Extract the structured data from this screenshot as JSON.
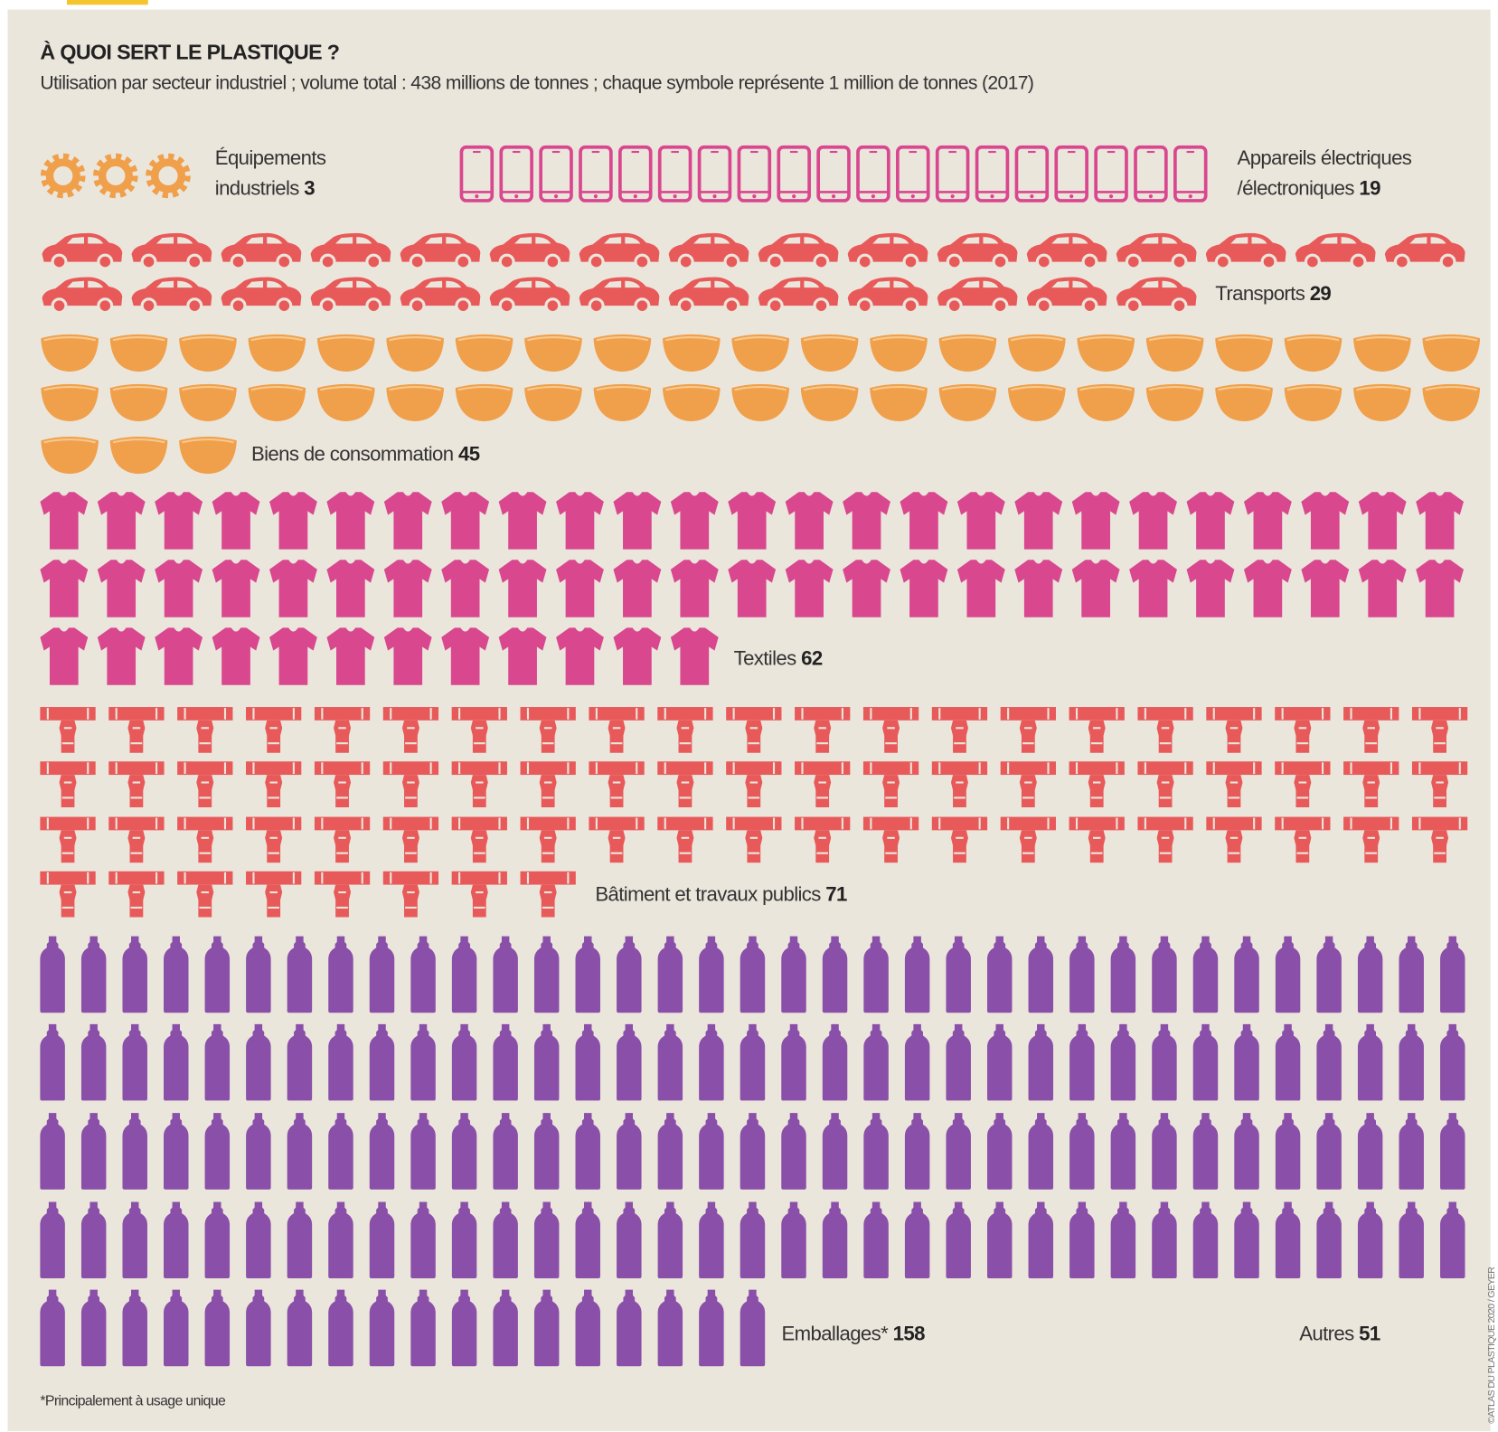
{
  "chart_data": {
    "type": "pictogram",
    "title": "À QUOI SERT LE PLASTIQUE ?",
    "subtitle": "Utilisation par secteur industriel ; volume total : 438 millions de tonnes ; chaque symbole représente 1 million de tonnes (2017)",
    "categories": [
      "Équipements\nindustriels",
      "Appareils électriques\n/électroniques",
      "Transports",
      "Biens de consommation",
      "Textiles",
      "Bâtiment et travaux publics",
      "Emballages*",
      "Autres"
    ],
    "values": [
      3,
      19,
      29,
      45,
      62,
      71,
      158,
      51
    ],
    "colors": [
      "#f0a04b",
      "#d9478f",
      "#e85a5a",
      "#f0a04b",
      "#d9478f",
      "#e85a5a",
      "#8a4fa8",
      null
    ],
    "footnote": "*Principalement à usage unique",
    "source": "©ATLAS DU PLASTIQUE 2020 / GEYER"
  }
}
